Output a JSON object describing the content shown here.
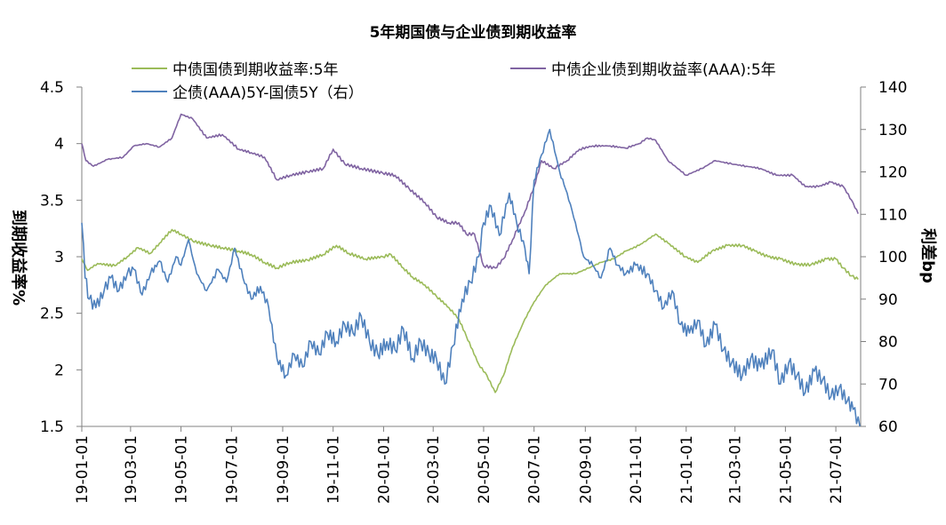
{
  "chart_data": {
    "type": "line",
    "title": "5年期国债与企业债到期收益率",
    "ylabel": "到期收益率%",
    "y2label": "利差bp",
    "ylim": [
      1.5,
      4.5
    ],
    "y2lim": [
      60,
      140
    ],
    "yticks": [
      "4.5",
      "4",
      "3.5",
      "3",
      "2.5",
      "2",
      "1.5"
    ],
    "y2ticks": [
      "140",
      "130",
      "120",
      "110",
      "100",
      "90",
      "80",
      "70",
      "60"
    ],
    "x_ticks": [
      "19-01-01",
      "19-03-01",
      "19-05-01",
      "19-07-01",
      "19-09-01",
      "19-11-01",
      "20-01-01",
      "20-03-01",
      "20-05-01",
      "20-07-01",
      "20-09-01",
      "20-11-01",
      "21-01-01",
      "21-03-01",
      "21-05-01",
      "21-07-01"
    ],
    "x_start": "2019-01-01",
    "x_end": "2021-07-31",
    "series": [
      {
        "name": "中债国债到期收益率:5年",
        "axis": "left",
        "color": "#9bbb59",
        "points": [
          [
            "2019-01-01",
            2.98
          ],
          [
            "2019-01-08",
            2.88
          ],
          [
            "2019-01-20",
            2.94
          ],
          [
            "2019-02-10",
            2.92
          ],
          [
            "2019-02-25",
            3.0
          ],
          [
            "2019-03-10",
            3.08
          ],
          [
            "2019-03-25",
            3.03
          ],
          [
            "2019-04-05",
            3.12
          ],
          [
            "2019-04-20",
            3.24
          ],
          [
            "2019-05-01",
            3.2
          ],
          [
            "2019-05-15",
            3.14
          ],
          [
            "2019-06-05",
            3.1
          ],
          [
            "2019-06-20",
            3.08
          ],
          [
            "2019-07-10",
            3.05
          ],
          [
            "2019-07-25",
            3.02
          ],
          [
            "2019-08-10",
            2.95
          ],
          [
            "2019-08-25",
            2.9
          ],
          [
            "2019-09-10",
            2.95
          ],
          [
            "2019-10-01",
            2.97
          ],
          [
            "2019-10-20",
            3.02
          ],
          [
            "2019-11-05",
            3.1
          ],
          [
            "2019-11-20",
            3.03
          ],
          [
            "2019-12-10",
            2.98
          ],
          [
            "2019-12-31",
            3.0
          ],
          [
            "2020-01-10",
            3.02
          ],
          [
            "2020-01-25",
            2.9
          ],
          [
            "2020-02-05",
            2.82
          ],
          [
            "2020-02-20",
            2.75
          ],
          [
            "2020-03-05",
            2.65
          ],
          [
            "2020-03-20",
            2.55
          ],
          [
            "2020-04-01",
            2.45
          ],
          [
            "2020-04-10",
            2.3
          ],
          [
            "2020-04-25",
            2.05
          ],
          [
            "2020-05-05",
            1.95
          ],
          [
            "2020-05-15",
            1.8
          ],
          [
            "2020-05-25",
            1.95
          ],
          [
            "2020-06-05",
            2.2
          ],
          [
            "2020-06-20",
            2.45
          ],
          [
            "2020-07-01",
            2.6
          ],
          [
            "2020-07-15",
            2.75
          ],
          [
            "2020-08-01",
            2.85
          ],
          [
            "2020-08-20",
            2.85
          ],
          [
            "2020-09-05",
            2.9
          ],
          [
            "2020-09-20",
            2.95
          ],
          [
            "2020-10-05",
            2.98
          ],
          [
            "2020-10-20",
            3.05
          ],
          [
            "2020-11-05",
            3.1
          ],
          [
            "2020-11-15",
            3.15
          ],
          [
            "2020-11-25",
            3.2
          ],
          [
            "2020-12-10",
            3.12
          ],
          [
            "2020-12-31",
            3.0
          ],
          [
            "2021-01-15",
            2.95
          ],
          [
            "2021-02-01",
            3.05
          ],
          [
            "2021-02-20",
            3.1
          ],
          [
            "2021-03-10",
            3.1
          ],
          [
            "2021-03-25",
            3.05
          ],
          [
            "2021-04-10",
            3.0
          ],
          [
            "2021-04-25",
            2.98
          ],
          [
            "2021-05-15",
            2.93
          ],
          [
            "2021-06-01",
            2.93
          ],
          [
            "2021-06-20",
            2.98
          ],
          [
            "2021-07-01",
            2.98
          ],
          [
            "2021-07-10",
            2.9
          ],
          [
            "2021-07-20",
            2.83
          ],
          [
            "2021-07-28",
            2.8
          ]
        ]
      },
      {
        "name": "中债企业债到期收益率(AAA):5年",
        "axis": "left",
        "color": "#8064a2",
        "points": [
          [
            "2019-01-01",
            4.0
          ],
          [
            "2019-01-06",
            3.85
          ],
          [
            "2019-01-15",
            3.8
          ],
          [
            "2019-02-01",
            3.86
          ],
          [
            "2019-02-20",
            3.88
          ],
          [
            "2019-03-05",
            3.98
          ],
          [
            "2019-03-20",
            4.0
          ],
          [
            "2019-04-05",
            3.97
          ],
          [
            "2019-04-20",
            4.05
          ],
          [
            "2019-05-01",
            4.26
          ],
          [
            "2019-05-15",
            4.22
          ],
          [
            "2019-06-01",
            4.05
          ],
          [
            "2019-06-20",
            4.08
          ],
          [
            "2019-07-10",
            3.95
          ],
          [
            "2019-07-25",
            3.92
          ],
          [
            "2019-08-10",
            3.88
          ],
          [
            "2019-08-25",
            3.68
          ],
          [
            "2019-09-10",
            3.72
          ],
          [
            "2019-10-01",
            3.75
          ],
          [
            "2019-10-20",
            3.78
          ],
          [
            "2019-11-01",
            3.95
          ],
          [
            "2019-11-15",
            3.82
          ],
          [
            "2019-12-05",
            3.78
          ],
          [
            "2019-12-31",
            3.74
          ],
          [
            "2020-01-15",
            3.72
          ],
          [
            "2020-02-01",
            3.6
          ],
          [
            "2020-02-20",
            3.48
          ],
          [
            "2020-03-05",
            3.35
          ],
          [
            "2020-03-20",
            3.3
          ],
          [
            "2020-04-01",
            3.3
          ],
          [
            "2020-04-10",
            3.2
          ],
          [
            "2020-04-20",
            3.2
          ],
          [
            "2020-05-01",
            2.92
          ],
          [
            "2020-05-15",
            2.9
          ],
          [
            "2020-05-25",
            2.98
          ],
          [
            "2020-06-05",
            3.15
          ],
          [
            "2020-06-20",
            3.4
          ],
          [
            "2020-07-01",
            3.62
          ],
          [
            "2020-07-10",
            3.85
          ],
          [
            "2020-07-25",
            3.78
          ],
          [
            "2020-08-10",
            3.85
          ],
          [
            "2020-08-25",
            3.95
          ],
          [
            "2020-09-10",
            3.98
          ],
          [
            "2020-10-01",
            3.98
          ],
          [
            "2020-10-20",
            3.96
          ],
          [
            "2020-11-05",
            4.0
          ],
          [
            "2020-11-15",
            4.05
          ],
          [
            "2020-11-25",
            4.03
          ],
          [
            "2020-12-10",
            3.85
          ],
          [
            "2021-01-01",
            3.72
          ],
          [
            "2021-01-20",
            3.78
          ],
          [
            "2021-02-05",
            3.85
          ],
          [
            "2021-02-25",
            3.82
          ],
          [
            "2021-03-15",
            3.8
          ],
          [
            "2021-04-01",
            3.78
          ],
          [
            "2021-04-20",
            3.72
          ],
          [
            "2021-05-10",
            3.72
          ],
          [
            "2021-05-25",
            3.62
          ],
          [
            "2021-06-10",
            3.62
          ],
          [
            "2021-06-25",
            3.66
          ],
          [
            "2021-07-10",
            3.62
          ],
          [
            "2021-07-20",
            3.5
          ],
          [
            "2021-07-28",
            3.38
          ]
        ]
      },
      {
        "name": "企债(AAA)5Y-国债5Y（右）",
        "axis": "right",
        "color": "#4f81bd",
        "points": [
          [
            "2019-01-01",
            108
          ],
          [
            "2019-01-05",
            95
          ],
          [
            "2019-01-10",
            90
          ],
          [
            "2019-01-18",
            88
          ],
          [
            "2019-01-28",
            92
          ],
          [
            "2019-02-05",
            95
          ],
          [
            "2019-02-15",
            92
          ],
          [
            "2019-02-25",
            96
          ],
          [
            "2019-03-05",
            97
          ],
          [
            "2019-03-15",
            91
          ],
          [
            "2019-03-25",
            96
          ],
          [
            "2019-04-05",
            99
          ],
          [
            "2019-04-15",
            94
          ],
          [
            "2019-04-25",
            100
          ],
          [
            "2019-05-01",
            98
          ],
          [
            "2019-05-10",
            104
          ],
          [
            "2019-05-20",
            96
          ],
          [
            "2019-06-01",
            92
          ],
          [
            "2019-06-15",
            97
          ],
          [
            "2019-06-25",
            94
          ],
          [
            "2019-07-05",
            102
          ],
          [
            "2019-07-15",
            95
          ],
          [
            "2019-07-25",
            90
          ],
          [
            "2019-08-05",
            93
          ],
          [
            "2019-08-15",
            88
          ],
          [
            "2019-08-25",
            76
          ],
          [
            "2019-09-05",
            72
          ],
          [
            "2019-09-15",
            77
          ],
          [
            "2019-09-25",
            74
          ],
          [
            "2019-10-05",
            80
          ],
          [
            "2019-10-15",
            77
          ],
          [
            "2019-10-25",
            82
          ],
          [
            "2019-11-05",
            80
          ],
          [
            "2019-11-15",
            84
          ],
          [
            "2019-11-25",
            82
          ],
          [
            "2019-12-05",
            86
          ],
          [
            "2019-12-15",
            80
          ],
          [
            "2019-12-25",
            77
          ],
          [
            "2020-01-05",
            80
          ],
          [
            "2020-01-15",
            78
          ],
          [
            "2020-01-25",
            83
          ],
          [
            "2020-02-05",
            76
          ],
          [
            "2020-02-15",
            80
          ],
          [
            "2020-02-25",
            77
          ],
          [
            "2020-03-05",
            76
          ],
          [
            "2020-03-15",
            70
          ],
          [
            "2020-03-25",
            79
          ],
          [
            "2020-04-05",
            90
          ],
          [
            "2020-04-15",
            94
          ],
          [
            "2020-04-25",
            100
          ],
          [
            "2020-05-01",
            108
          ],
          [
            "2020-05-10",
            112
          ],
          [
            "2020-05-20",
            105
          ],
          [
            "2020-06-01",
            115
          ],
          [
            "2020-06-10",
            108
          ],
          [
            "2020-06-20",
            102
          ],
          [
            "2020-06-25",
            96
          ],
          [
            "2020-07-01",
            118
          ],
          [
            "2020-07-10",
            124
          ],
          [
            "2020-07-20",
            130
          ],
          [
            "2020-08-01",
            120
          ],
          [
            "2020-08-10",
            115
          ],
          [
            "2020-08-20",
            108
          ],
          [
            "2020-08-30",
            100
          ],
          [
            "2020-09-10",
            98
          ],
          [
            "2020-09-20",
            95
          ],
          [
            "2020-10-01",
            102
          ],
          [
            "2020-10-10",
            98
          ],
          [
            "2020-10-20",
            96
          ],
          [
            "2020-11-01",
            98
          ],
          [
            "2020-11-15",
            96
          ],
          [
            "2020-11-25",
            92
          ],
          [
            "2020-12-05",
            88
          ],
          [
            "2020-12-15",
            92
          ],
          [
            "2020-12-25",
            84
          ],
          [
            "2021-01-05",
            82
          ],
          [
            "2021-01-15",
            85
          ],
          [
            "2021-01-25",
            79
          ],
          [
            "2021-02-05",
            84
          ],
          [
            "2021-02-15",
            78
          ],
          [
            "2021-02-25",
            75
          ],
          [
            "2021-03-10",
            72
          ],
          [
            "2021-03-20",
            76
          ],
          [
            "2021-04-01",
            74
          ],
          [
            "2021-04-15",
            78
          ],
          [
            "2021-04-25",
            70
          ],
          [
            "2021-05-05",
            75
          ],
          [
            "2021-05-15",
            72
          ],
          [
            "2021-05-25",
            68
          ],
          [
            "2021-06-05",
            73
          ],
          [
            "2021-06-15",
            71
          ],
          [
            "2021-06-25",
            67
          ],
          [
            "2021-07-05",
            69
          ],
          [
            "2021-07-15",
            66
          ],
          [
            "2021-07-22",
            64
          ],
          [
            "2021-07-30",
            60
          ]
        ]
      }
    ]
  }
}
